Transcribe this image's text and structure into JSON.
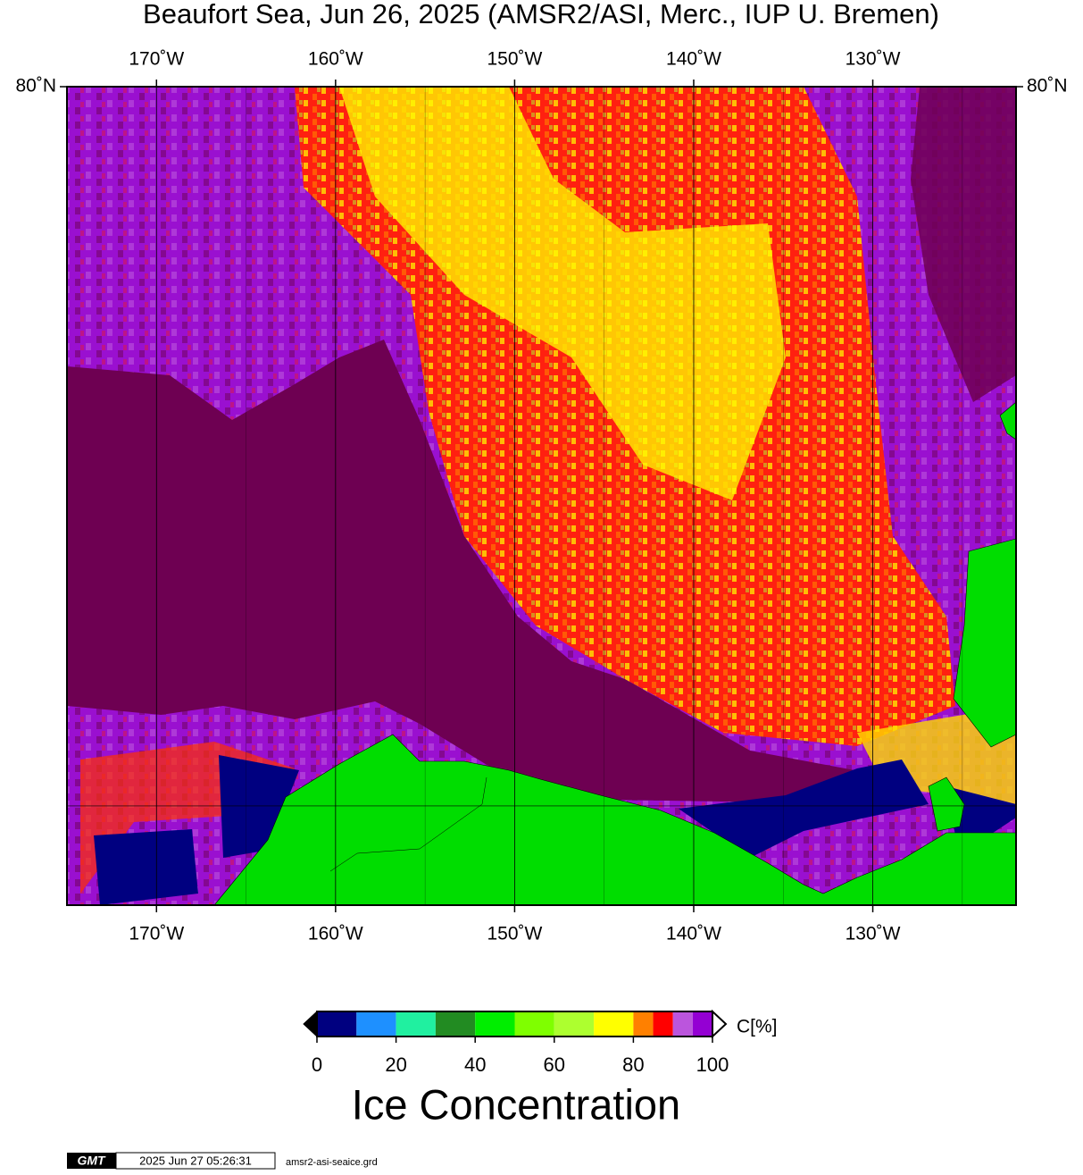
{
  "header": {
    "title": "Beaufort Sea, Jun 26, 2025 (AMSR2/ASI, Merc., IUP U. Bremen)"
  },
  "map": {
    "xlim": [
      -175,
      -122
    ],
    "ylim": [
      68.62,
      80
    ],
    "lon_ticks": [
      {
        "value": -170,
        "label": "170˚W"
      },
      {
        "value": -160,
        "label": "160˚W"
      },
      {
        "value": -150,
        "label": "150˚W"
      },
      {
        "value": -140,
        "label": "140˚W"
      },
      {
        "value": -130,
        "label": "130˚W"
      }
    ],
    "lat_ticks": [
      {
        "value": 80,
        "label": "80˚N"
      }
    ],
    "minor_lons": [
      -165,
      -155,
      -145,
      -135,
      -125
    ],
    "grid_lats": [
      70
    ]
  },
  "colorbar": {
    "lim": [
      0,
      100
    ],
    "ticks": [
      0,
      20,
      40,
      60,
      80,
      100
    ],
    "bounds": [
      0,
      10,
      20,
      30,
      40,
      50,
      60,
      70,
      80,
      85,
      90,
      95,
      100
    ],
    "colors": [
      "#000080",
      "#1e90ff",
      "#20f0a0",
      "#228b22",
      "#00ee00",
      "#7fff00",
      "#adff2f",
      "#ffff00",
      "#ff8000",
      "#ff0000",
      "#bb55dd",
      "#9400d3"
    ],
    "unit": "C[%]",
    "label": "Ice Concentration"
  },
  "footer": {
    "logo": "GMT",
    "timestamp": "2025 Jun 27 05:26:31",
    "filename": "amsr2-asi-seaice.grd"
  }
}
